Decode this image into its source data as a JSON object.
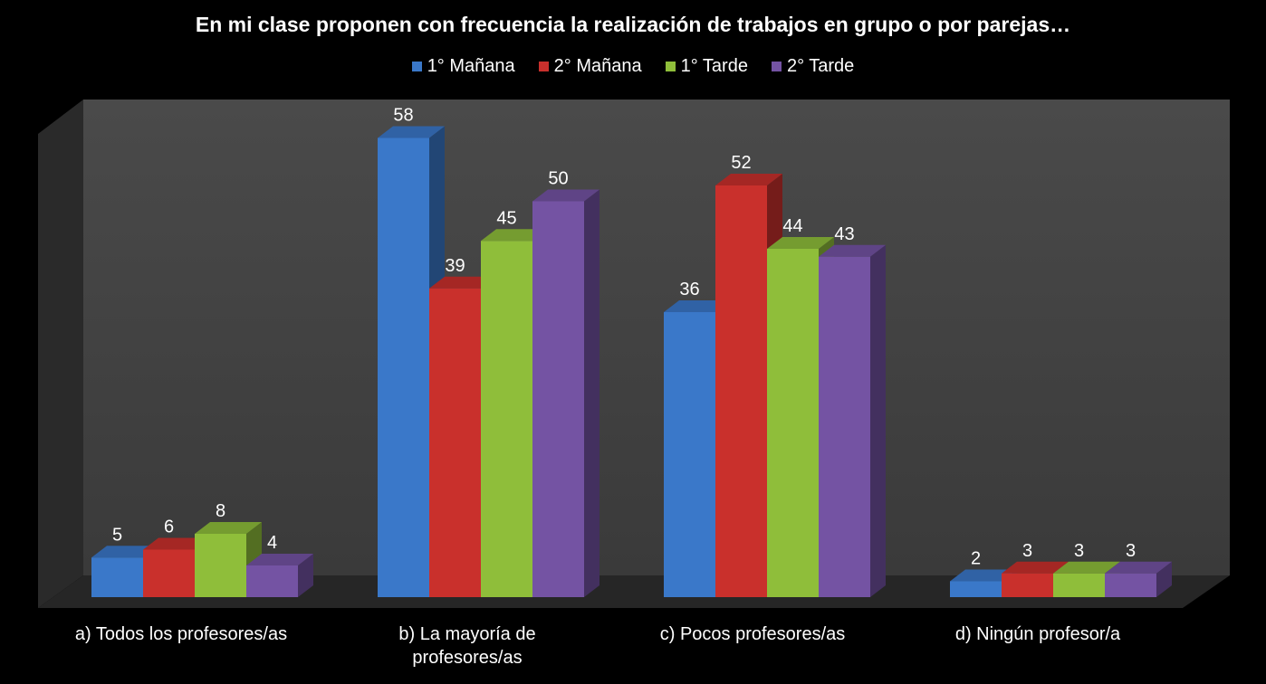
{
  "chart_data": {
    "type": "bar",
    "title": "En mi clase proponen con frecuencia la realización de trabajos en grupo o por parejas…",
    "categories": [
      "a) Todos los profesores/as",
      "b) La mayoría de\nprofesores/as",
      "c) Pocos profesores/as",
      "d) Ningún profesor/a"
    ],
    "series": [
      {
        "name": "1° Mañana",
        "color": "#3a78c9",
        "values": [
          5,
          58,
          36,
          2
        ]
      },
      {
        "name": "2° Mañana",
        "color": "#c9302c",
        "values": [
          6,
          39,
          52,
          3
        ]
      },
      {
        "name": "1° Tarde",
        "color": "#8fbe3a",
        "values": [
          8,
          45,
          44,
          3
        ]
      },
      {
        "name": "2° Tarde",
        "color": "#7453a3",
        "values": [
          4,
          50,
          43,
          3
        ]
      }
    ],
    "ylim": [
      0,
      60
    ],
    "legend": "top-center",
    "grid": false,
    "style": "3d-column"
  }
}
